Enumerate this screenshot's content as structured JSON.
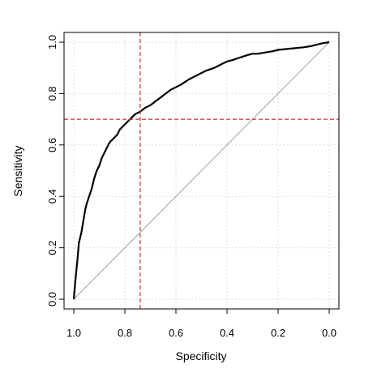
{
  "chart_data": {
    "type": "line",
    "title": "",
    "xlabel": "Specificity",
    "ylabel": "Sensitivity",
    "xlim": [
      1.0,
      0.0
    ],
    "ylim": [
      0.0,
      1.0
    ],
    "x_reversed": true,
    "grid": true,
    "x_ticks": [
      1.0,
      0.8,
      0.6,
      0.4,
      0.2,
      0.0
    ],
    "y_ticks": [
      0.0,
      0.2,
      0.4,
      0.6,
      0.8,
      1.0
    ],
    "x_tick_labels": [
      "1.0",
      "0.8",
      "0.6",
      "0.4",
      "0.2",
      "0.0"
    ],
    "y_tick_labels": [
      "0.0",
      "0.2",
      "0.4",
      "0.6",
      "0.8",
      "1.0"
    ],
    "series": [
      {
        "color": "#000000",
        "x": [
          1.0,
          0.995,
          0.99,
          0.985,
          0.98,
          0.975,
          0.97,
          0.96,
          0.955,
          0.95,
          0.94,
          0.93,
          0.92,
          0.91,
          0.9,
          0.89,
          0.88,
          0.87,
          0.86,
          0.85,
          0.84,
          0.83,
          0.82,
          0.8,
          0.78,
          0.76,
          0.74,
          0.72,
          0.7,
          0.68,
          0.66,
          0.64,
          0.62,
          0.6,
          0.58,
          0.55,
          0.52,
          0.5,
          0.48,
          0.45,
          0.42,
          0.4,
          0.38,
          0.35,
          0.32,
          0.3,
          0.28,
          0.25,
          0.22,
          0.2,
          0.15,
          0.1,
          0.07,
          0.05,
          0.03,
          0.0
        ],
        "y": [
          0.0,
          0.06,
          0.11,
          0.16,
          0.22,
          0.24,
          0.26,
          0.32,
          0.35,
          0.37,
          0.4,
          0.43,
          0.47,
          0.5,
          0.52,
          0.55,
          0.57,
          0.59,
          0.61,
          0.62,
          0.63,
          0.64,
          0.66,
          0.68,
          0.7,
          0.72,
          0.73,
          0.745,
          0.755,
          0.77,
          0.785,
          0.8,
          0.815,
          0.825,
          0.835,
          0.855,
          0.87,
          0.88,
          0.89,
          0.9,
          0.915,
          0.925,
          0.93,
          0.94,
          0.95,
          0.955,
          0.955,
          0.96,
          0.965,
          0.97,
          0.975,
          0.98,
          0.985,
          0.99,
          0.995,
          1.0
        ]
      }
    ],
    "reference_line": {
      "from": [
        1.0,
        0.0
      ],
      "to": [
        0.0,
        1.0
      ],
      "color": "#a0a0a0"
    },
    "threshold_lines": {
      "x": 0.74,
      "y": 0.7,
      "color": "#c0302a",
      "style": "dashed"
    }
  }
}
